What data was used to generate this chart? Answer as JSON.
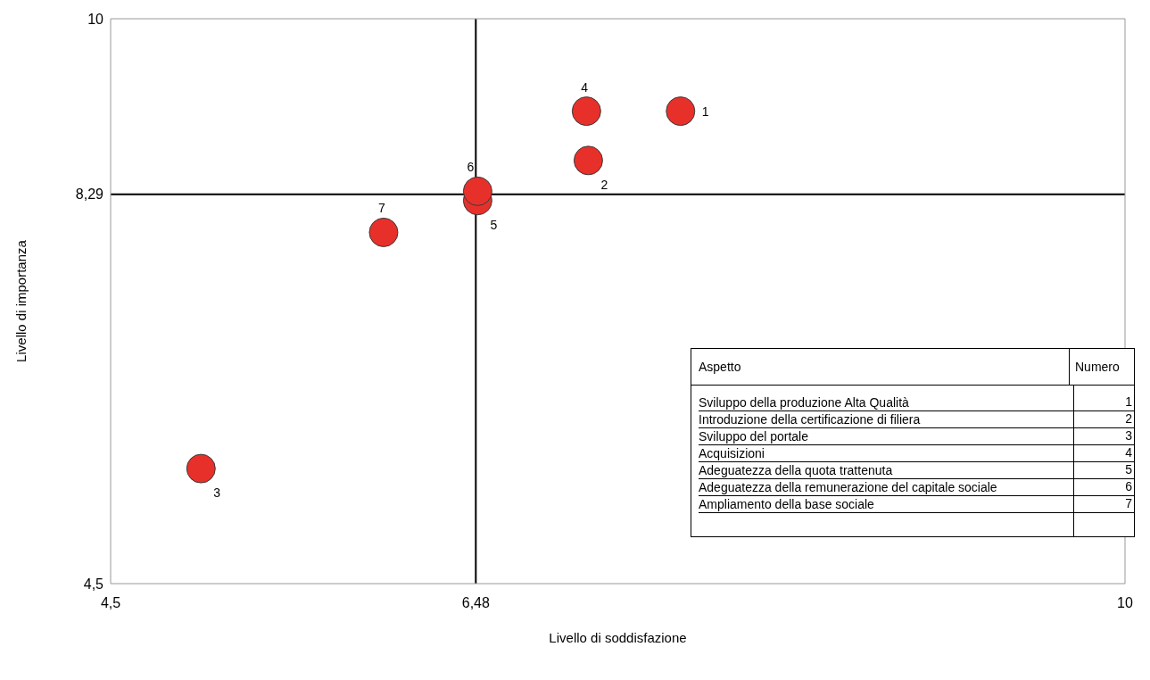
{
  "chart_data": {
    "type": "scatter",
    "xlabel": "Livello di soddisfazione",
    "ylabel": "Livello di importanza",
    "series": [
      {
        "name": "1",
        "color": "#e8302a",
        "x": [
          7.59
        ],
        "values": [
          9.1
        ]
      },
      {
        "name": "2",
        "color": "#e8302a",
        "x": [
          7.09
        ],
        "values": [
          8.62
        ]
      },
      {
        "name": "3",
        "color": "#e8302a",
        "x": [
          4.99
        ],
        "values": [
          5.62
        ]
      },
      {
        "name": "4",
        "color": "#e8302a",
        "x": [
          7.08
        ],
        "values": [
          9.1
        ]
      },
      {
        "name": "5",
        "color": "#e8302a",
        "x": [
          6.49
        ],
        "values": [
          8.23
        ]
      },
      {
        "name": "6",
        "color": "#e8302a",
        "x": [
          6.49
        ],
        "values": [
          8.32
        ]
      },
      {
        "name": "7",
        "color": "#e8302a",
        "x": [
          5.98
        ],
        "values": [
          7.92
        ]
      }
    ],
    "marker": "circle",
    "grid": false,
    "legend": false,
    "xlim": [
      4.5,
      10
    ],
    "xticks": [
      {
        "value": 4.5,
        "label": "4,5"
      },
      {
        "value": 6.48,
        "label": "6,48"
      },
      10
    ],
    "ylim": [
      4.5,
      10
    ],
    "yticks": [
      {
        "value": 4.5,
        "label": "4,5"
      },
      {
        "value": 8.29,
        "label": "8,29"
      },
      10
    ],
    "ref_lines": [
      {
        "axis": "x",
        "value": 6.48,
        "color": "#000000"
      },
      {
        "axis": "y",
        "value": 8.29,
        "color": "#000000"
      }
    ],
    "annotations": [
      "Aspetto",
      "Numero",
      "Sviluppo della produzione Alta Qualità",
      "1",
      "Introduzione della certificazione di filiera",
      "2",
      "Sviluppo del portale",
      "3",
      "Acquisizioni",
      "4",
      "Adeguatezza della quota trattenuta",
      "5",
      "Adeguatezza della remunerazione del capitale sociale",
      "6",
      "Ampliamento della base sociale",
      "7"
    ]
  }
}
